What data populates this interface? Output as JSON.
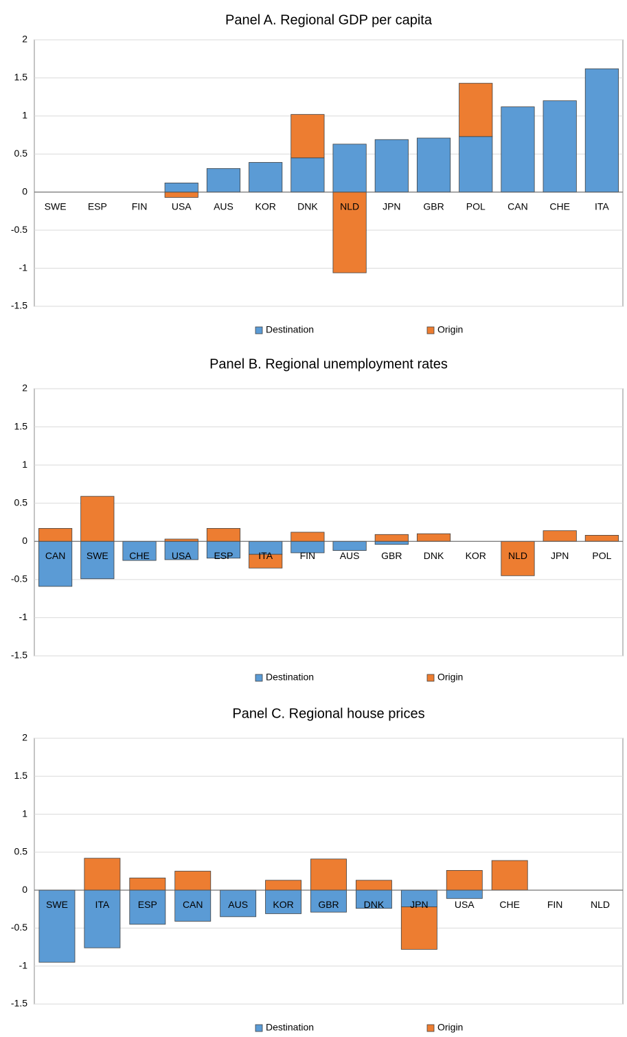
{
  "chart_data": [
    {
      "type": "bar",
      "title": "Panel A. Regional GDP per capita",
      "categories": [
        "SWE",
        "ESP",
        "FIN",
        "USA",
        "AUS",
        "KOR",
        "DNK",
        "NLD",
        "JPN",
        "GBR",
        "POL",
        "CAN",
        "CHE",
        "ITA"
      ],
      "series": [
        {
          "name": "Destination",
          "color": "#5b9bd5",
          "values": [
            0,
            0,
            0,
            0.12,
            0.31,
            0.39,
            0.45,
            0.63,
            0.69,
            0.71,
            0.73,
            1.12,
            1.2,
            1.62
          ]
        },
        {
          "name": "Origin",
          "color": "#ed7d31",
          "values": [
            0,
            0,
            0,
            -0.07,
            0,
            0,
            0.57,
            -1.06,
            0,
            0,
            0.7,
            0,
            0,
            0
          ]
        }
      ],
      "ylim": [
        -1.5,
        2
      ],
      "yticks": [
        -1.5,
        -1,
        -0.5,
        0,
        0.5,
        1,
        1.5,
        2
      ],
      "grid": true,
      "stacked": true
    },
    {
      "type": "bar",
      "title": "Panel B. Regional unemployment rates",
      "categories": [
        "CAN",
        "SWE",
        "CHE",
        "USA",
        "ESP",
        "ITA",
        "FIN",
        "AUS",
        "GBR",
        "DNK",
        "KOR",
        "NLD",
        "JPN",
        "POL"
      ],
      "series": [
        {
          "name": "Destination",
          "color": "#5b9bd5",
          "values": [
            -0.59,
            -0.49,
            -0.25,
            -0.24,
            -0.22,
            -0.17,
            -0.15,
            -0.12,
            -0.04,
            0,
            0,
            0,
            0,
            0
          ]
        },
        {
          "name": "Origin",
          "color": "#ed7d31",
          "values": [
            0.17,
            0.59,
            0,
            0.03,
            0.17,
            -0.18,
            0.12,
            0,
            0.09,
            0.1,
            0,
            -0.45,
            0.14,
            0.08
          ]
        }
      ],
      "ylim": [
        -1.5,
        2
      ],
      "yticks": [
        -1.5,
        -1,
        -0.5,
        0,
        0.5,
        1,
        1.5,
        2
      ],
      "grid": true,
      "stacked": true
    },
    {
      "type": "bar",
      "title": "Panel C. Regional house prices",
      "categories": [
        "SWE",
        "ITA",
        "ESP",
        "CAN",
        "AUS",
        "KOR",
        "GBR",
        "DNK",
        "JPN",
        "USA",
        "CHE",
        "FIN",
        "NLD"
      ],
      "series": [
        {
          "name": "Destination",
          "color": "#5b9bd5",
          "values": [
            -0.95,
            -0.76,
            -0.45,
            -0.41,
            -0.35,
            -0.31,
            -0.29,
            -0.24,
            -0.22,
            -0.11,
            0,
            0,
            0
          ]
        },
        {
          "name": "Origin",
          "color": "#ed7d31",
          "values": [
            0,
            0.42,
            0.16,
            0.25,
            0,
            0.13,
            0.41,
            0.13,
            -0.56,
            0.26,
            0.39,
            0,
            0
          ]
        }
      ],
      "ylim": [
        -1.5,
        2
      ],
      "yticks": [
        -1.5,
        -1,
        -0.5,
        0,
        0.5,
        1,
        1.5,
        2
      ],
      "grid": true,
      "stacked": true
    }
  ]
}
